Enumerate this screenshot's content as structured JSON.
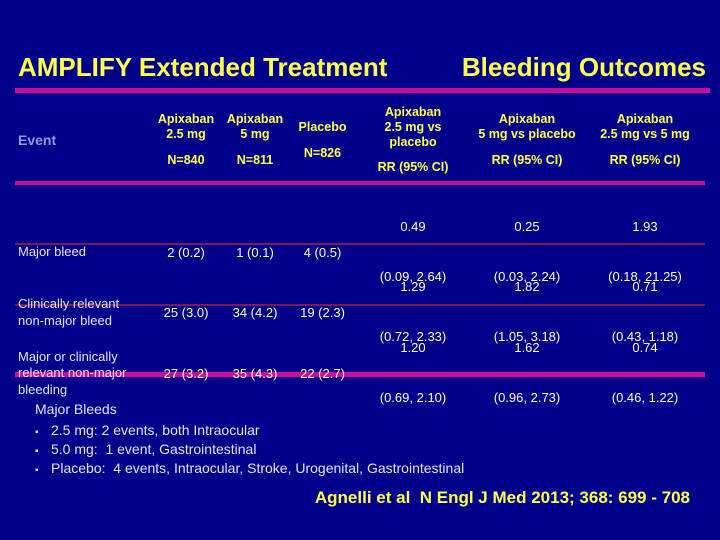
{
  "colors": {
    "bg": "#00008B",
    "yellow": "#FFFF4D",
    "cream": "#FFFFCC",
    "white": "#E4E4F0",
    "lavender": "#9898D8",
    "magenta": "#CC0D9C",
    "separator": "#7A1A52"
  },
  "title": {
    "part1": "AMPLIFY Extended Treatment",
    "part2": "Bleeding Outcomes"
  },
  "table": {
    "event_header": "Event",
    "columns": [
      {
        "lines": [
          "Apixaban",
          "2.5 mg"
        ],
        "sub": "N=840"
      },
      {
        "lines": [
          "Apixaban",
          "5 mg"
        ],
        "sub": "N=811"
      },
      {
        "lines": [
          "Placebo"
        ],
        "sub": "N=826"
      },
      {
        "lines": [
          "Apixaban",
          "2.5 mg vs",
          "placebo"
        ],
        "sub": "RR (95% CI)"
      },
      {
        "lines": [
          "Apixaban",
          "5 mg vs placebo"
        ],
        "sub": "RR (95% CI)"
      },
      {
        "lines": [
          "Apixaban",
          "2.5 mg vs 5 mg"
        ],
        "sub": "RR (95% CI)"
      }
    ],
    "rows": [
      {
        "label": "Major bleed",
        "counts": [
          "2 (0.2)",
          "1 (0.1)",
          "4 (0.5)"
        ],
        "rr": [
          {
            "value": "0.49",
            "ci": "(0.09, 2.64)"
          },
          {
            "value": "0.25",
            "ci": "(0.03, 2.24)"
          },
          {
            "value": "1.93",
            "ci": "(0.18, 21.25)"
          }
        ]
      },
      {
        "label": "Clinically relevant non-major bleed",
        "counts": [
          "25 (3.0)",
          "34 (4.2)",
          "19 (2.3)"
        ],
        "rr": [
          {
            "value": "1.29",
            "ci": "(0.72, 2.33)"
          },
          {
            "value": "1.82",
            "ci": "(1.05, 3.18)"
          },
          {
            "value": "0.71",
            "ci": "(0.43, 1.18)"
          }
        ]
      },
      {
        "label": "Major or clinically relevant non-major bleeding",
        "counts": [
          "27 (3.2)",
          "35 (4.3)",
          "22 (2.7)"
        ],
        "rr": [
          {
            "value": "1.20",
            "ci": "(0.69, 2.10)"
          },
          {
            "value": "1.62",
            "ci": "(0.96, 2.73)"
          },
          {
            "value": "0.74",
            "ci": "(0.46, 1.22)"
          }
        ]
      }
    ]
  },
  "notes": {
    "heading": "Major Bleeds",
    "bullet_char": "▪",
    "bullets": [
      "2.5 mg: 2 events, both Intraocular",
      "5.0 mg:  1 event, Gastrointestinal",
      "Placebo:  4 events, Intraocular, Stroke, Urogenital, Gastrointestinal"
    ]
  },
  "citation": "Agnelli et al  N Engl J Med 2013; 368: 699 - 708"
}
